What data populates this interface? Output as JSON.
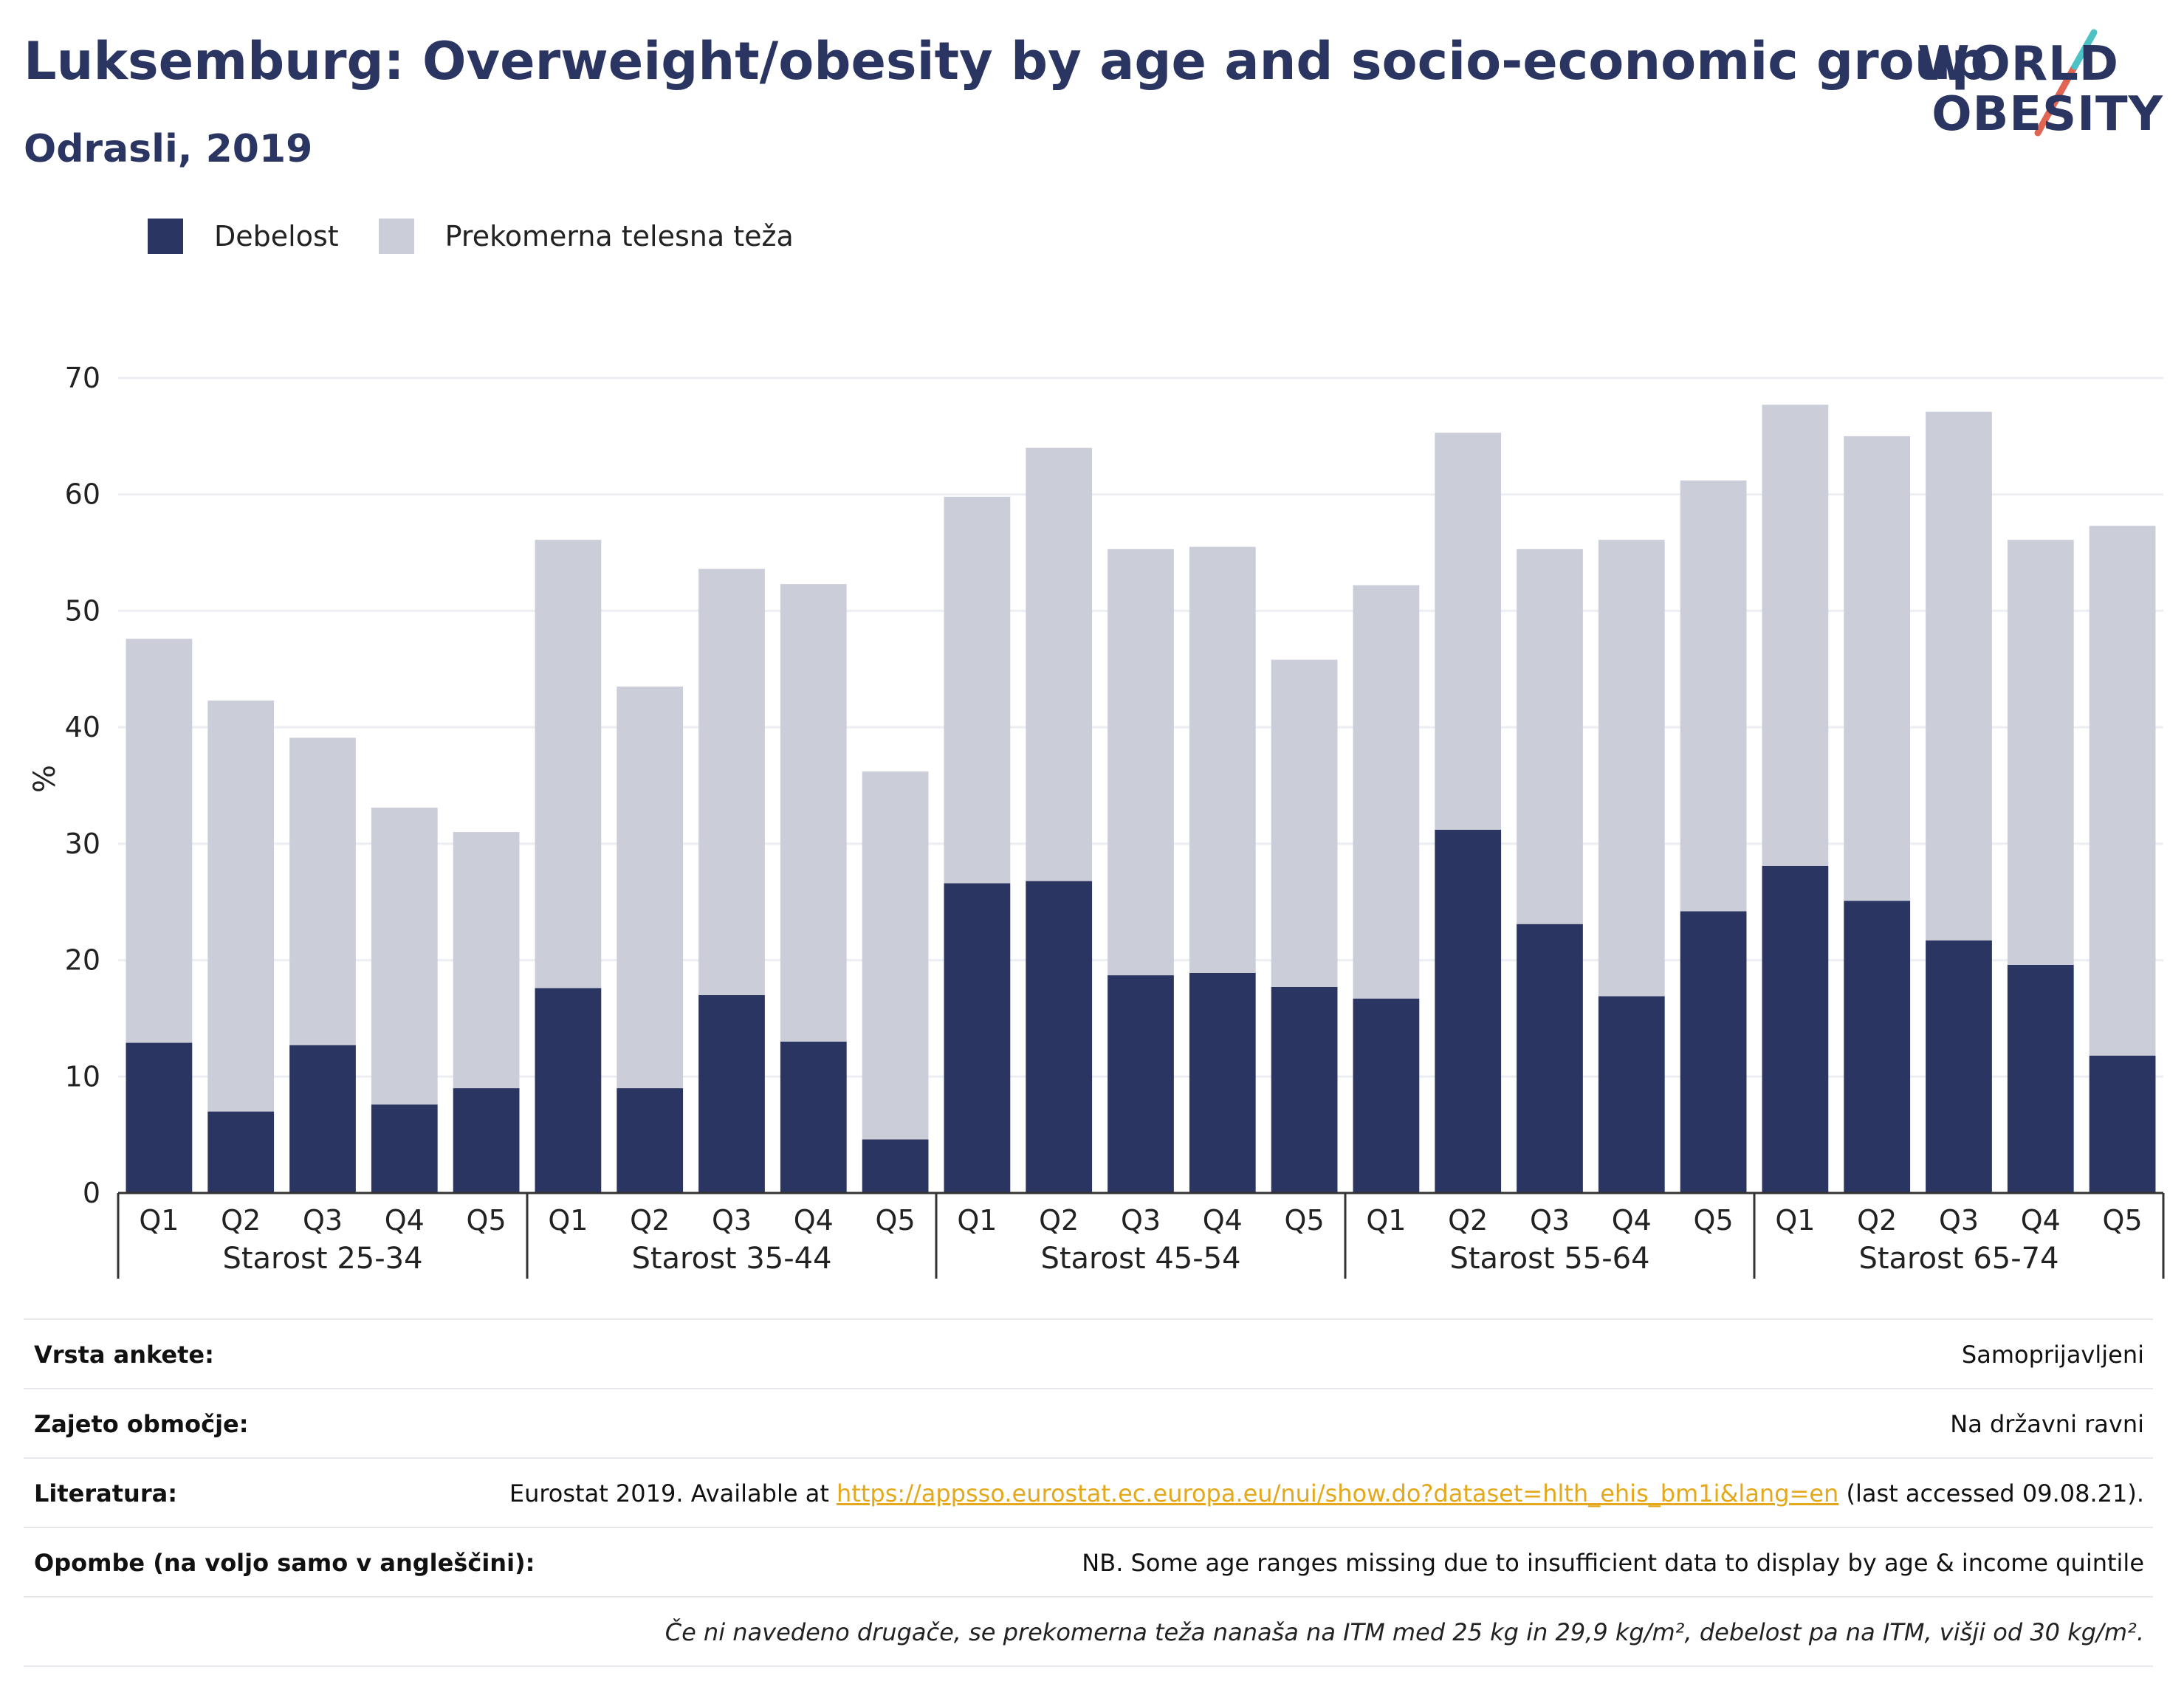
{
  "header": {
    "title": "Luksemburg: Overweight/obesity by age and socio-economic group",
    "subtitle": "Odrasli, 2019"
  },
  "logo": {
    "line1": "WORLD",
    "line2": "OBESITY",
    "slash_colors": [
      "#4cc2c4",
      "#e06552"
    ]
  },
  "colors": {
    "obesity": "#2b3562",
    "overweight": "#cbcdd9",
    "grid": "#eceef3",
    "axis": "#333333"
  },
  "chart_data": {
    "type": "bar",
    "stacked": true,
    "ylabel": "%",
    "ylim": [
      0,
      70
    ],
    "yticks": [
      0,
      10,
      20,
      30,
      40,
      50,
      60,
      70
    ],
    "grid": true,
    "legend_position": "top-left",
    "groups": [
      "Starost 25-34",
      "Starost 35-44",
      "Starost 45-54",
      "Starost 55-64",
      "Starost 65-74"
    ],
    "quintiles": [
      "Q1",
      "Q2",
      "Q3",
      "Q4",
      "Q5"
    ],
    "series": [
      {
        "name": "Debelost",
        "color": "#2b3562",
        "values": [
          [
            12.9,
            7.0,
            12.7,
            7.6,
            9.0
          ],
          [
            17.6,
            9.0,
            17.0,
            13.0,
            4.6
          ],
          [
            26.6,
            26.8,
            18.7,
            18.9,
            17.7
          ],
          [
            16.7,
            31.2,
            23.1,
            16.9,
            24.2
          ],
          [
            28.1,
            25.1,
            21.7,
            19.6,
            11.8
          ]
        ]
      },
      {
        "name": "Prekomerna telesna teža",
        "color": "#cbcdd9",
        "values": [
          [
            34.7,
            35.3,
            26.4,
            25.5,
            22.0
          ],
          [
            38.5,
            34.5,
            36.6,
            39.3,
            31.6
          ],
          [
            33.2,
            37.2,
            36.6,
            36.6,
            28.1
          ],
          [
            35.5,
            34.1,
            32.2,
            39.2,
            37.0
          ],
          [
            39.6,
            39.9,
            45.4,
            36.5,
            45.5
          ]
        ]
      }
    ]
  },
  "meta": [
    {
      "key": "Vrsta ankete:",
      "value": "Samoprijavljeni"
    },
    {
      "key": "Zajeto območje:",
      "value": "Na državni ravni"
    },
    {
      "key": "Literatura:",
      "value_prefix": "Eurostat 2019. Available at ",
      "link": "https://appsso.eurostat.ec.europa.eu/nui/show.do?dataset=hlth_ehis_bm1i&lang=en",
      "value_suffix": " (last accessed 09.08.21)."
    },
    {
      "key": "Opombe (na voljo samo v angleščini):",
      "value": "NB. Some age ranges missing due to insufficient data to display by age & income quintile"
    }
  ],
  "footnote": "Če ni navedeno drugače, se prekomerna teža nanaša na ITM med 25 kg in 29,9 kg/m², debelost pa na ITM, višji od 30 kg/m²."
}
